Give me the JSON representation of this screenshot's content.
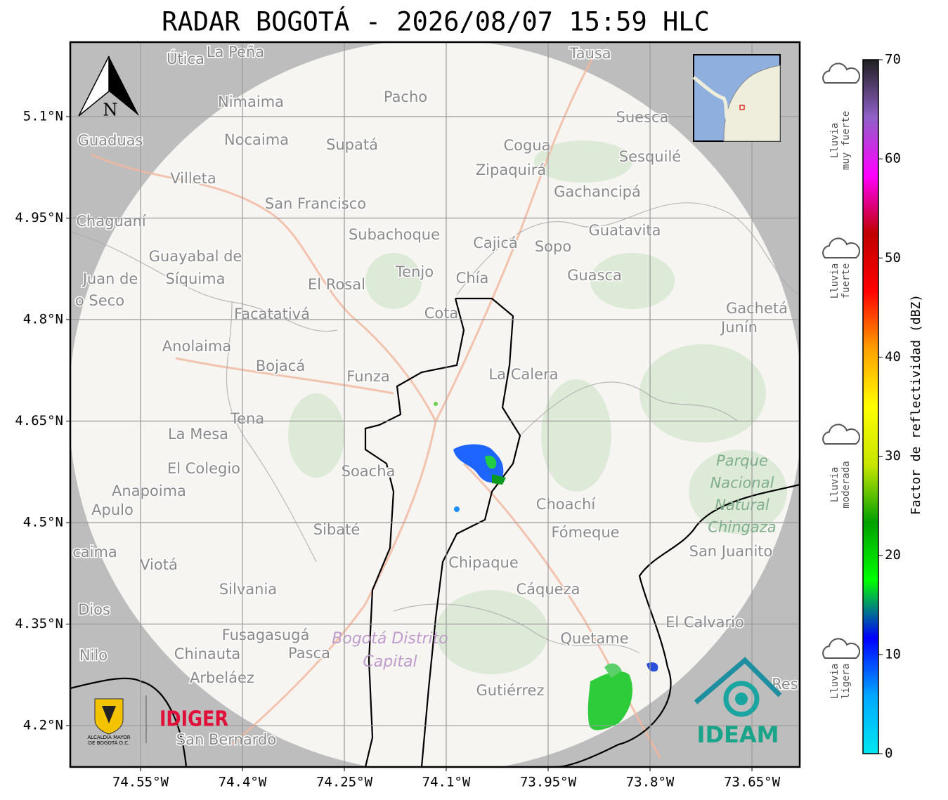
{
  "title": "RADAR BOGOTÁ - 2026/08/07 15:59 HLC",
  "map": {
    "xlim": [
      -74.6534,
      -73.5797
    ],
    "ylim": [
      4.1388,
      5.21
    ],
    "xticks": [
      {
        "value": -74.55,
        "label": "74.55°W"
      },
      {
        "value": -74.4,
        "label": "74.4°W"
      },
      {
        "value": -74.25,
        "label": "74.25°W"
      },
      {
        "value": -74.1,
        "label": "74.1°W"
      },
      {
        "value": -73.95,
        "label": "73.95°W"
      },
      {
        "value": -73.8,
        "label": "73.8°W"
      },
      {
        "value": -73.65,
        "label": "73.65°W"
      }
    ],
    "yticks": [
      {
        "value": 4.2,
        "label": "4.2°N"
      },
      {
        "value": 4.35,
        "label": "4.35°N"
      },
      {
        "value": 4.5,
        "label": "4.5°N"
      },
      {
        "value": 4.65,
        "label": "4.65°N"
      },
      {
        "value": 4.8,
        "label": "4.8°N"
      },
      {
        "value": 4.95,
        "label": "4.95°N"
      },
      {
        "value": 5.1,
        "label": "5.1°N"
      }
    ],
    "grid": true,
    "north": "N",
    "places": [
      "Útica",
      "La Peña",
      "Tausa",
      "Pacho",
      "Nimaima",
      "Guaduas",
      "Nocaima",
      "Supatá",
      "Cogua",
      "Suesca",
      "Sesquilé",
      "Zipaquirá",
      "Villeta",
      "Gachancipá",
      "San Francisco",
      "Chaguaní",
      "Guatavita",
      "Subachoque",
      "Cajicá",
      "Sopo",
      "Guayabal de",
      "Síquima",
      "Juan de",
      "o Seco",
      "Tenjo",
      "Chía",
      "Guasca",
      "El Rosal",
      "Facatativá",
      "Cota",
      "Gachetá",
      "Junín",
      "Anolaima",
      "Bojacá",
      "Funza",
      "La Calera",
      "Tena",
      "La Mesa",
      "Soacha",
      "El Colegio",
      "Anapoima",
      "Apulo",
      "Choachí",
      "Sibaté",
      "Fómeque",
      "San Juanito",
      "caima",
      "Viotá",
      "Chipaque",
      "Silvania",
      "Cáqueza",
      "Dios",
      "El Calvario",
      "Fusagasugá",
      "Quetame",
      "Nilo",
      "Chinauta",
      "Pasca",
      "Arbeláez",
      "Gutiérrez",
      "Res",
      "San Bernardo"
    ],
    "park": [
      "Parque",
      "Nacional",
      "Natural",
      "Chingaza"
    ],
    "district": [
      "Bogotá Distrito",
      "Capital"
    ]
  },
  "colorbar": {
    "label": "Factor de reflectividad (dBZ)",
    "lim": [
      0,
      70
    ],
    "ticks": [
      0,
      10,
      20,
      30,
      40,
      50,
      60,
      70
    ],
    "colors": [
      "#00e8f0",
      "#00a8ff",
      "#0000ff",
      "#00ff00",
      "#00a000",
      "#c8e600",
      "#ffff00",
      "#ffa000",
      "#ff0000",
      "#c00000",
      "#ff00ff",
      "#9060c8",
      "#202020"
    ]
  },
  "rain_labels": [
    [
      "Lluvia",
      "muy fuerte"
    ],
    [
      "Lluvia",
      "fuerte"
    ],
    [
      "Lluvia",
      "moderada"
    ],
    [
      "Lluvia",
      "ligera"
    ]
  ],
  "logos": {
    "alcaldia": [
      "ALCALDÍA MAYOR",
      "DE BOGOTÁ D.C."
    ],
    "idiger": "IDIGER",
    "ideam": "IDEAM"
  }
}
